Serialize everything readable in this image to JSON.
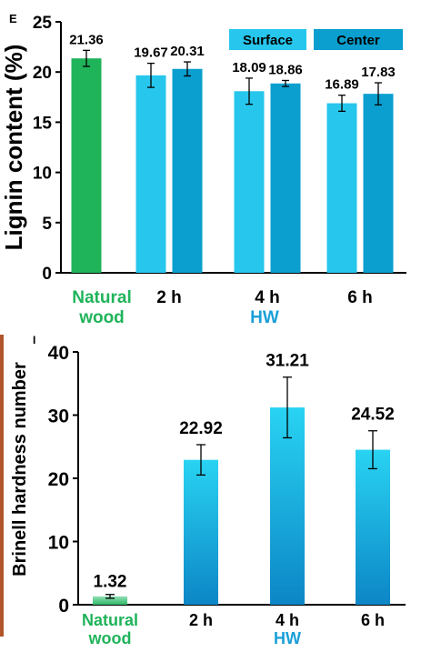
{
  "panels": {
    "top_letter": "E",
    "bottom_letter": "I"
  },
  "colors": {
    "natural": "#1fb35a",
    "surface": "#27c6ec",
    "center": "#0a9fcf",
    "hw_label": "#1a9fd8",
    "natural_label": "#20b35a",
    "bar2_top": "#29d3f2",
    "bar2_bottom": "#0c86c6",
    "natural2_top": "#8fe0b3",
    "natural2_bottom": "#31b86a",
    "decor_strip": "#b1552a"
  },
  "chart_data": [
    {
      "type": "bar",
      "ylabel": "Lignin content (%)",
      "ylim": [
        0,
        25
      ],
      "yticks": [
        0,
        5,
        10,
        15,
        20,
        25
      ],
      "groups": [
        {
          "label_lines": [
            "Natural",
            "wood"
          ],
          "bars": [
            {
              "series": "natural",
              "value": 21.36,
              "error": 0.8,
              "label": "21.36"
            }
          ]
        },
        {
          "label_lines": [
            "2 h"
          ],
          "bars": [
            {
              "series": "Surface",
              "value": 19.67,
              "error": 1.2,
              "label": "19.67"
            },
            {
              "series": "Center",
              "value": 20.31,
              "error": 0.7,
              "label": "20.31"
            }
          ]
        },
        {
          "label_lines": [
            "4 h"
          ],
          "bars": [
            {
              "series": "Surface",
              "value": 18.09,
              "error": 1.3,
              "label": "18.09"
            },
            {
              "series": "Center",
              "value": 18.86,
              "error": 0.3,
              "label": "18.86"
            }
          ]
        },
        {
          "label_lines": [
            "6 h"
          ],
          "bars": [
            {
              "series": "Surface",
              "value": 16.89,
              "error": 0.8,
              "label": "16.89"
            },
            {
              "series": "Center",
              "value": 17.83,
              "error": 1.1,
              "label": "17.83"
            }
          ]
        }
      ],
      "legend": [
        {
          "name": "Surface"
        },
        {
          "name": "Center"
        }
      ],
      "legend_position": "top-right",
      "group_caption": "HW",
      "grid": false
    },
    {
      "type": "bar",
      "ylabel": "Brinell hardness number",
      "ylim": [
        0,
        40
      ],
      "yticks": [
        0,
        10,
        20,
        30,
        40
      ],
      "categories": [
        [
          "Natural",
          "wood"
        ],
        [
          "2 h"
        ],
        [
          "4 h"
        ],
        [
          "6 h"
        ]
      ],
      "values": [
        1.32,
        22.92,
        31.21,
        24.52
      ],
      "errors": [
        0.3,
        2.4,
        4.8,
        3.0
      ],
      "value_labels": [
        "1.32",
        "22.92",
        "31.21",
        "24.52"
      ],
      "group_caption": "HW",
      "grid": false
    }
  ]
}
